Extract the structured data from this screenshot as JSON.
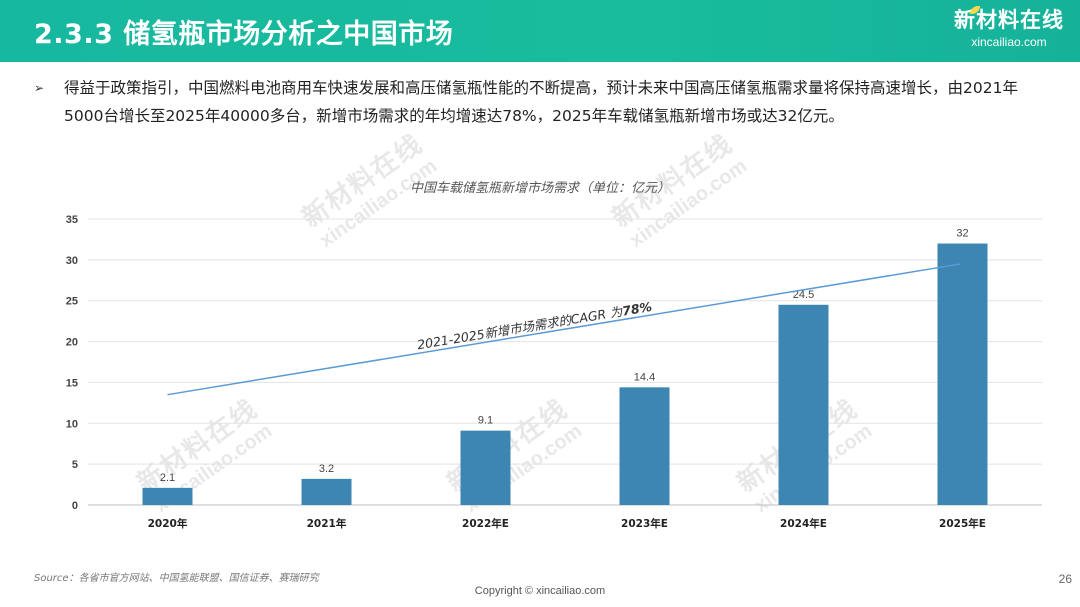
{
  "header": {
    "title": "2.3.3 储氢瓶市场分析之中国市场",
    "logo_main": "新材料在线",
    "logo_sub": "xincailiao.com",
    "bar_color": "#19bc9c"
  },
  "body": {
    "bullet_icon": "arrow-bullet",
    "bullet_glyph": "➢",
    "paragraph": "得益于政策指引，中国燃料电池商用车快速发展和高压储氢瓶性能的不断提高，预计未来中国高压储氢瓶需求量将保持高速增长，由2021年5000台增长至2025年40000多台，新增市场需求的年均增速达78%，2025年车载储氢瓶新增市场或达32亿元。"
  },
  "chart_data": {
    "type": "bar",
    "title": "中国车载储氢瓶新增市场需求（单位：亿元）",
    "categories": [
      "2020年",
      "2021年",
      "2022年E",
      "2023年E",
      "2024年E",
      "2025年E"
    ],
    "values": [
      2.1,
      3.2,
      9.1,
      14.4,
      24.5,
      32
    ],
    "value_labels": [
      "2.1",
      "3.2",
      "9.1",
      "14.4",
      "24.5",
      "32"
    ],
    "ylim": [
      0,
      35
    ],
    "yticks": [
      0,
      5,
      10,
      15,
      20,
      25,
      30,
      35
    ],
    "ytick_labels": [
      "0",
      "5",
      "10",
      "15",
      "20",
      "25",
      "30",
      "35"
    ],
    "grid": true,
    "bar_color": "#3d86b3",
    "trend_line": {
      "start_value": 13.5,
      "end_value": 29.5,
      "color": "#5b9bd5"
    },
    "annotation_prefix": "2021-2025新增市场需求的CAGR 为",
    "annotation_value": "78%",
    "xlabel": "",
    "ylabel": ""
  },
  "watermark": {
    "main": "新材料在线",
    "sub": "xincailiao.com"
  },
  "footer": {
    "source": "Source：各省市官方网站、中国氢能联盟、国信证券、赛瑞研究",
    "copyright": "Copyright © xincailiao.com",
    "page_number": "26"
  }
}
